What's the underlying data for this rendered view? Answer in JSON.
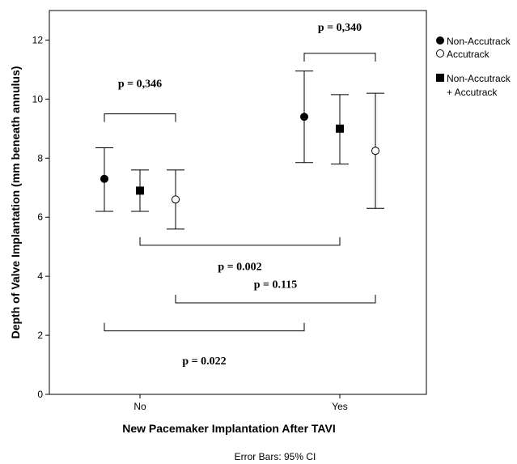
{
  "chart_data": {
    "type": "scatter",
    "subtype": "error-bar",
    "categories": [
      "No",
      "Yes"
    ],
    "xlabel": "New Pacemaker Implantation After TAVI",
    "ylabel": "Depth of Valve Implantation (mm beneath annulus)",
    "ylim": [
      0,
      13
    ],
    "yticks": [
      "0",
      "2",
      "4",
      "6",
      "8",
      "10",
      "12"
    ],
    "footnote": "Error Bars: 95% CI",
    "series": [
      {
        "name": "Non-Accutrack",
        "marker": "filled-circle",
        "points": [
          {
            "category": "No",
            "mean": 7.3,
            "lower": 6.2,
            "upper": 8.35
          },
          {
            "category": "Yes",
            "mean": 9.4,
            "lower": 7.85,
            "upper": 10.95
          }
        ]
      },
      {
        "name": "Non-Accutrack + Accutrack",
        "legend_lines": [
          "Non-Accutrack",
          "+ Accutrack"
        ],
        "marker": "filled-square",
        "points": [
          {
            "category": "No",
            "mean": 6.9,
            "lower": 6.2,
            "upper": 7.6
          },
          {
            "category": "Yes",
            "mean": 9.0,
            "lower": 7.8,
            "upper": 10.15
          }
        ]
      },
      {
        "name": "Accutrack",
        "marker": "open-circle",
        "points": [
          {
            "category": "No",
            "mean": 6.6,
            "lower": 5.6,
            "upper": 7.6
          },
          {
            "category": "Yes",
            "mean": 8.25,
            "lower": 6.3,
            "upper": 10.2
          }
        ]
      }
    ],
    "legend": {
      "placement": "right",
      "entries": [
        {
          "marker": "filled-circle",
          "lines": [
            "Non-Accutrack"
          ]
        },
        {
          "marker": "open-circle",
          "lines": [
            "Accutrack"
          ]
        },
        {
          "marker": "filled-square",
          "lines": [
            "Non-Accutrack",
            "+ Accutrack"
          ]
        }
      ]
    },
    "annotations": [
      {
        "text": "p = 0,346",
        "from": [
          "No",
          "Non-Accutrack"
        ],
        "to": [
          "No",
          "Accutrack"
        ],
        "bracket_y": 9.5,
        "text_y": 10.55,
        "direction": "down"
      },
      {
        "text": "p = 0,340",
        "from": [
          "Yes",
          "Non-Accutrack"
        ],
        "to": [
          "Yes",
          "Accutrack"
        ],
        "bracket_y": 11.55,
        "text_y": 12.45,
        "direction": "down"
      },
      {
        "text": "p = 0.002",
        "from": [
          "No",
          "Non-Accutrack + Accutrack"
        ],
        "to": [
          "Yes",
          "Non-Accutrack + Accutrack"
        ],
        "bracket_y": 5.05,
        "text_y": 4.35,
        "direction": "up"
      },
      {
        "text": "p = 0.115",
        "from": [
          "No",
          "Accutrack"
        ],
        "to": [
          "Yes",
          "Accutrack"
        ],
        "bracket_y": 3.1,
        "text_y": 3.75,
        "direction": "up"
      },
      {
        "text": "p = 0.022",
        "from": [
          "No",
          "Non-Accutrack"
        ],
        "to": [
          "Yes",
          "Non-Accutrack"
        ],
        "bracket_y": 2.15,
        "text_y": 1.15,
        "direction": "up"
      }
    ]
  }
}
